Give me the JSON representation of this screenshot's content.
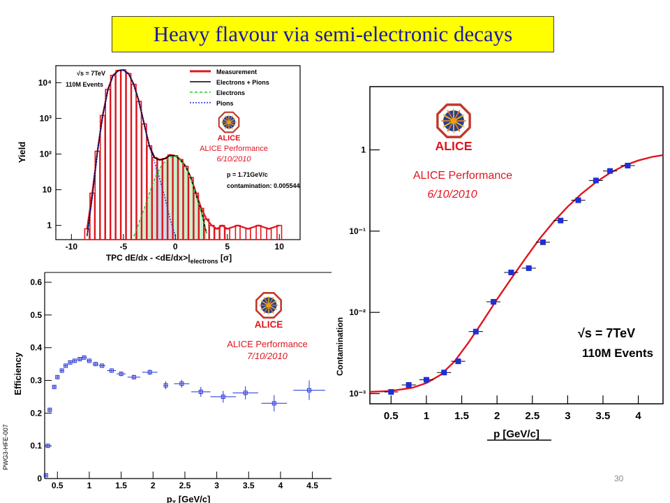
{
  "slide": {
    "title": "Heavy flavour via semi-electronic decays",
    "page_number": "30"
  },
  "colors": {
    "title_bg": "#ffff00",
    "title_text": "#1a1aa6",
    "alice_red": "#e0141e",
    "marker_blue": "#1f2fd6"
  },
  "chart_data": [
    {
      "type": "line",
      "panel": "tpc-dedx",
      "title": "",
      "xlabel": "TPC dE/dx - <dE/dx>|",
      "xlabel_sub": "electrons",
      "xlabel_unit": " [σ]",
      "ylabel": "Yield",
      "xlim": [
        -11.5,
        12
      ],
      "ylim_log": [
        0.4,
        30000
      ],
      "log_y": true,
      "x_ticks": [
        -10,
        -5,
        0,
        5,
        10
      ],
      "y_ticks": [
        {
          "v": 1,
          "label": "1"
        },
        {
          "v": 10,
          "label": "10"
        },
        {
          "v": 100,
          "label": "10²"
        },
        {
          "v": 1000,
          "label": "10³"
        },
        {
          "v": 10000,
          "label": "10⁴"
        }
      ],
      "legend": [
        "Measurement",
        "Electrons + Pions",
        "Electrons",
        "Pions"
      ],
      "legend_position": "top-right",
      "annotations": [
        "√s = 7TeV",
        "110M Events",
        "ALICE Performance",
        "6/10/2010",
        "p = 1.71GeV/c",
        "contamination: 0.005544"
      ],
      "series": [
        {
          "name": "Measurement",
          "x": [
            -8.5,
            -8,
            -7.5,
            -7,
            -6.5,
            -6,
            -5.5,
            -5,
            -4.5,
            -4,
            -3.5,
            -3,
            -2.5,
            -2,
            -1.5,
            -1,
            -0.5,
            0,
            0.5,
            1,
            1.5,
            2,
            2.5,
            3,
            3.5,
            4,
            4.5,
            5,
            6,
            7,
            8,
            9,
            10
          ],
          "y": [
            0.8,
            8,
            120,
            1200,
            6500,
            16000,
            22000,
            23000,
            18000,
            9000,
            3000,
            700,
            170,
            80,
            70,
            75,
            95,
            90,
            70,
            45,
            22,
            8,
            3,
            1.5,
            1,
            0.8,
            1,
            0.8,
            1,
            0.8,
            1,
            0.8,
            1
          ]
        },
        {
          "name": "Electrons + Pions",
          "x": [
            -8.5,
            -8,
            -7.5,
            -7,
            -6.5,
            -6,
            -5.5,
            -5,
            -4.5,
            -4,
            -3.5,
            -3,
            -2.5,
            -2,
            -1.5,
            -1,
            -0.5,
            0,
            0.5,
            1,
            1.5,
            2,
            2.5,
            3
          ],
          "y": [
            0.5,
            6,
            110,
            1100,
            6000,
            15500,
            21500,
            22500,
            17500,
            8800,
            2900,
            680,
            165,
            78,
            68,
            74,
            92,
            88,
            68,
            44,
            21,
            7,
            2.5,
            0.6
          ]
        },
        {
          "name": "Electrons",
          "x": [
            -4,
            -3.5,
            -3,
            -2.5,
            -2,
            -1.5,
            -1,
            -0.5,
            0,
            0.5,
            1,
            1.5,
            2,
            2.5,
            3
          ],
          "y": [
            0.5,
            1.2,
            3,
            8,
            20,
            40,
            62,
            82,
            88,
            68,
            44,
            21,
            7,
            2.5,
            0.6
          ]
        },
        {
          "name": "Pions",
          "x": [
            -8.5,
            -8,
            -7.5,
            -7,
            -6.5,
            -6,
            -5.5,
            -5,
            -4.5,
            -4,
            -3.5,
            -3,
            -2.5,
            -2,
            -1.5,
            -1,
            -0.5,
            0
          ],
          "y": [
            0.5,
            6,
            110,
            1100,
            6000,
            15500,
            21500,
            22500,
            17500,
            8800,
            2900,
            680,
            160,
            60,
            20,
            6,
            1.5,
            0.5
          ]
        }
      ]
    },
    {
      "type": "scatter",
      "panel": "efficiency",
      "title": "",
      "xlabel": "p",
      "xlabel_sub": "T",
      "xlabel_unit": " [GeV/c]",
      "ylabel": "Efficiency",
      "side_label": "PWG3-HFE-007",
      "xlim": [
        0.3,
        4.8
      ],
      "ylim": [
        0,
        0.63
      ],
      "x_ticks": [
        {
          "v": 0.5,
          "label": "0.5"
        },
        {
          "v": 1,
          "label": "1"
        },
        {
          "v": 1.5,
          "label": "1.5"
        },
        {
          "v": 2,
          "label": "2"
        },
        {
          "v": 2.5,
          "label": "2.5"
        },
        {
          "v": 3,
          "label": "3"
        },
        {
          "v": 3.5,
          "label": "3.5"
        },
        {
          "v": 4,
          "label": "4"
        },
        {
          "v": 4.5,
          "label": "4.5"
        }
      ],
      "y_ticks": [
        {
          "v": 0,
          "label": "0"
        },
        {
          "v": 0.1,
          "label": "0.1"
        },
        {
          "v": 0.2,
          "label": "0.2"
        },
        {
          "v": 0.3,
          "label": "0.3"
        },
        {
          "v": 0.4,
          "label": "0.4"
        },
        {
          "v": 0.5,
          "label": "0.5"
        },
        {
          "v": 0.6,
          "label": "0.6"
        }
      ],
      "annotations": [
        "ALICE Performance",
        "7/10/2010"
      ],
      "points": [
        {
          "x": 0.32,
          "y": 0.01,
          "xerr": 0.02,
          "yerr": 0.005
        },
        {
          "x": 0.35,
          "y": 0.1,
          "xerr": 0.03,
          "yerr": 0.006
        },
        {
          "x": 0.38,
          "y": 0.21,
          "xerr": 0.03,
          "yerr": 0.006
        },
        {
          "x": 0.45,
          "y": 0.28,
          "xerr": 0.03,
          "yerr": 0.006
        },
        {
          "x": 0.5,
          "y": 0.31,
          "xerr": 0.03,
          "yerr": 0.006
        },
        {
          "x": 0.57,
          "y": 0.33,
          "xerr": 0.03,
          "yerr": 0.006
        },
        {
          "x": 0.63,
          "y": 0.345,
          "xerr": 0.03,
          "yerr": 0.006
        },
        {
          "x": 0.7,
          "y": 0.355,
          "xerr": 0.03,
          "yerr": 0.006
        },
        {
          "x": 0.77,
          "y": 0.36,
          "xerr": 0.03,
          "yerr": 0.006
        },
        {
          "x": 0.85,
          "y": 0.365,
          "xerr": 0.04,
          "yerr": 0.006
        },
        {
          "x": 0.92,
          "y": 0.37,
          "xerr": 0.04,
          "yerr": 0.006
        },
        {
          "x": 1.0,
          "y": 0.36,
          "xerr": 0.04,
          "yerr": 0.006
        },
        {
          "x": 1.1,
          "y": 0.35,
          "xerr": 0.05,
          "yerr": 0.006
        },
        {
          "x": 1.2,
          "y": 0.345,
          "xerr": 0.05,
          "yerr": 0.006
        },
        {
          "x": 1.35,
          "y": 0.33,
          "xerr": 0.07,
          "yerr": 0.006
        },
        {
          "x": 1.5,
          "y": 0.32,
          "xerr": 0.07,
          "yerr": 0.007
        },
        {
          "x": 1.7,
          "y": 0.31,
          "xerr": 0.1,
          "yerr": 0.007
        },
        {
          "x": 1.95,
          "y": 0.325,
          "xerr": 0.12,
          "yerr": 0.008
        },
        {
          "x": 2.2,
          "y": 0.285,
          "xerr": 0.03,
          "yerr": 0.012
        },
        {
          "x": 2.45,
          "y": 0.29,
          "xerr": 0.12,
          "yerr": 0.012
        },
        {
          "x": 2.75,
          "y": 0.265,
          "xerr": 0.15,
          "yerr": 0.015
        },
        {
          "x": 3.1,
          "y": 0.25,
          "xerr": 0.2,
          "yerr": 0.018
        },
        {
          "x": 3.45,
          "y": 0.262,
          "xerr": 0.2,
          "yerr": 0.02
        },
        {
          "x": 3.9,
          "y": 0.23,
          "xerr": 0.2,
          "yerr": 0.025
        },
        {
          "x": 4.45,
          "y": 0.27,
          "xerr": 0.25,
          "yerr": 0.03
        }
      ]
    },
    {
      "type": "scatter",
      "panel": "contamination",
      "title": "",
      "xlabel": "p [GeV/c]",
      "ylabel": "Contamination",
      "log_y": true,
      "xlim": [
        0.2,
        4.35
      ],
      "ylim_log": [
        0.00075,
        6
      ],
      "x_ticks": [
        {
          "v": 0.5,
          "label": "0.5"
        },
        {
          "v": 1,
          "label": "1"
        },
        {
          "v": 1.5,
          "label": "1.5"
        },
        {
          "v": 2,
          "label": "2"
        },
        {
          "v": 2.5,
          "label": "2.5"
        },
        {
          "v": 3,
          "label": "3"
        },
        {
          "v": 3.5,
          "label": "3.5"
        },
        {
          "v": 4,
          "label": "4"
        }
      ],
      "y_ticks": [
        {
          "v": 0.001,
          "label": "10⁻³"
        },
        {
          "v": 0.01,
          "label": "10⁻²"
        },
        {
          "v": 0.1,
          "label": "10⁻¹"
        },
        {
          "v": 1,
          "label": "1"
        }
      ],
      "annotations": [
        "ALICE Performance",
        "6/10/2010",
        "√s = 7TeV",
        "110M Events"
      ],
      "points": [
        {
          "x": 0.5,
          "y": 0.00105,
          "xerr": 0.1
        },
        {
          "x": 0.75,
          "y": 0.00128,
          "xerr": 0.1
        },
        {
          "x": 1.0,
          "y": 0.00148,
          "xerr": 0.1
        },
        {
          "x": 1.25,
          "y": 0.00182,
          "xerr": 0.1
        },
        {
          "x": 1.45,
          "y": 0.0025,
          "xerr": 0.1
        },
        {
          "x": 1.7,
          "y": 0.0058,
          "xerr": 0.1
        },
        {
          "x": 1.95,
          "y": 0.0135,
          "xerr": 0.1
        },
        {
          "x": 2.2,
          "y": 0.031,
          "xerr": 0.1
        },
        {
          "x": 2.45,
          "y": 0.035,
          "xerr": 0.1
        },
        {
          "x": 2.65,
          "y": 0.073,
          "xerr": 0.1
        },
        {
          "x": 2.9,
          "y": 0.135,
          "xerr": 0.1
        },
        {
          "x": 3.15,
          "y": 0.24,
          "xerr": 0.1
        },
        {
          "x": 3.4,
          "y": 0.42,
          "xerr": 0.1
        },
        {
          "x": 3.6,
          "y": 0.55,
          "xerr": 0.1
        },
        {
          "x": 3.85,
          "y": 0.64,
          "xerr": 0.1
        }
      ],
      "fit": {
        "x": [
          0.2,
          0.5,
          0.8,
          1.0,
          1.2,
          1.4,
          1.6,
          1.8,
          2.0,
          2.2,
          2.4,
          2.6,
          2.8,
          3.0,
          3.2,
          3.4,
          3.6,
          3.8,
          4.0,
          4.2,
          4.35
        ],
        "y": [
          0.00105,
          0.00108,
          0.00118,
          0.00135,
          0.0017,
          0.0025,
          0.0043,
          0.0078,
          0.0145,
          0.026,
          0.046,
          0.08,
          0.13,
          0.2,
          0.29,
          0.4,
          0.52,
          0.64,
          0.74,
          0.82,
          0.86
        ]
      }
    }
  ]
}
